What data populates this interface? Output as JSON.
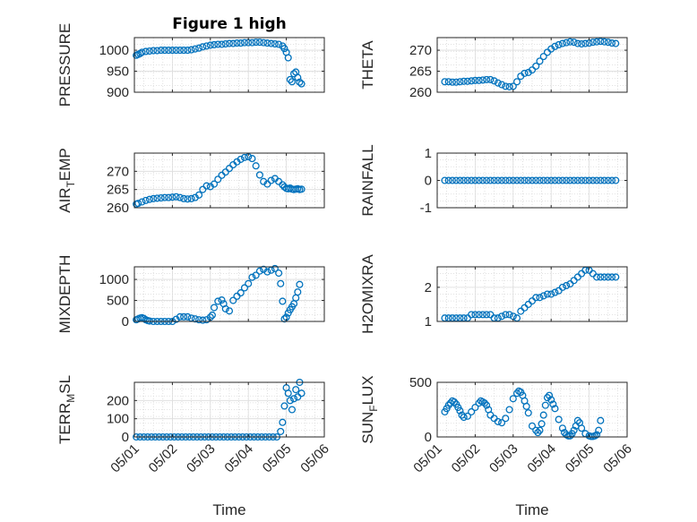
{
  "figure": {
    "title": "Figure 1 high",
    "marker_color": "#0072BD",
    "axes_color": "#262626",
    "grid": true
  },
  "chart_data": [
    {
      "type": "scatter",
      "id": "pressure",
      "title": "Figure 1 high",
      "xlabel": "",
      "ylabel": "PRESSURE",
      "xlim": [
        "05/01",
        "05/06"
      ],
      "ylim": [
        900,
        1030
      ],
      "yticks": [
        900,
        950,
        1000
      ],
      "xticks": [],
      "x": [
        0.05,
        0.1,
        0.15,
        0.2,
        0.3,
        0.4,
        0.5,
        0.6,
        0.7,
        0.8,
        0.9,
        1.0,
        1.1,
        1.2,
        1.3,
        1.4,
        1.5,
        1.6,
        1.7,
        1.8,
        1.9,
        2.0,
        2.1,
        2.2,
        2.3,
        2.4,
        2.5,
        2.6,
        2.7,
        2.8,
        2.9,
        3.0,
        3.1,
        3.2,
        3.3,
        3.4,
        3.5,
        3.6,
        3.7,
        3.8,
        3.9,
        3.95,
        4.0,
        4.05,
        4.1,
        4.15,
        4.2,
        4.25,
        4.3,
        4.35,
        4.4
      ],
      "y": [
        988,
        990,
        992,
        995,
        997,
        998,
        999,
        999,
        1000,
        1000,
        1000,
        1000,
        1000,
        1000,
        1000,
        1000,
        1001,
        1003,
        1005,
        1008,
        1010,
        1012,
        1013,
        1014,
        1014,
        1015,
        1016,
        1016,
        1017,
        1017,
        1018,
        1018,
        1018,
        1019,
        1019,
        1018,
        1017,
        1016,
        1015,
        1014,
        1010,
        1004,
        995,
        982,
        930,
        925,
        944,
        948,
        935,
        924,
        920
      ]
    },
    {
      "type": "scatter",
      "id": "theta",
      "xlabel": "",
      "ylabel": "THETA",
      "xlim": [
        "05/01",
        "05/06"
      ],
      "ylim": [
        260,
        273
      ],
      "yticks": [
        260,
        265,
        270
      ],
      "xticks": [],
      "x": [
        0.2,
        0.3,
        0.4,
        0.5,
        0.6,
        0.7,
        0.8,
        0.9,
        1.0,
        1.1,
        1.2,
        1.3,
        1.4,
        1.5,
        1.6,
        1.7,
        1.8,
        1.9,
        2.0,
        2.1,
        2.2,
        2.3,
        2.4,
        2.5,
        2.6,
        2.7,
        2.8,
        2.9,
        3.0,
        3.1,
        3.2,
        3.3,
        3.4,
        3.5,
        3.6,
        3.7,
        3.8,
        3.9,
        4.0,
        4.1,
        4.2,
        4.3,
        4.4,
        4.5,
        4.6,
        4.7
      ],
      "y": [
        262.5,
        262.5,
        262.4,
        262.4,
        262.5,
        262.6,
        262.6,
        262.7,
        262.8,
        262.8,
        262.9,
        263.0,
        263.0,
        262.7,
        262.2,
        261.8,
        261.4,
        261.3,
        261.4,
        262.5,
        263.8,
        264.5,
        264.7,
        265.3,
        266.2,
        267.4,
        268.5,
        269.5,
        270.3,
        270.9,
        271.3,
        271.6,
        271.8,
        272.0,
        271.9,
        271.6,
        271.5,
        271.6,
        271.7,
        271.9,
        272.0,
        272.1,
        272.0,
        271.9,
        271.7,
        271.6
      ]
    },
    {
      "type": "scatter",
      "id": "air_temp",
      "xlabel": "",
      "ylabel": "AIR_TEMP",
      "xlim": [
        "05/01",
        "05/06"
      ],
      "ylim": [
        260,
        275
      ],
      "yticks": [
        260,
        265,
        270
      ],
      "xticks": [],
      "x": [
        0.05,
        0.1,
        0.2,
        0.3,
        0.4,
        0.5,
        0.6,
        0.7,
        0.8,
        0.9,
        1.0,
        1.1,
        1.2,
        1.3,
        1.4,
        1.5,
        1.6,
        1.7,
        1.8,
        1.9,
        2.0,
        2.1,
        2.2,
        2.3,
        2.4,
        2.5,
        2.6,
        2.7,
        2.8,
        2.9,
        3.0,
        3.1,
        3.2,
        3.3,
        3.4,
        3.5,
        3.6,
        3.7,
        3.8,
        3.9,
        3.95,
        4.0,
        4.05,
        4.1,
        4.15,
        4.2,
        4.25,
        4.3,
        4.35,
        4.4
      ],
      "y": [
        261.0,
        261.2,
        261.6,
        262.0,
        262.3,
        262.5,
        262.6,
        262.7,
        262.8,
        262.8,
        262.9,
        263.0,
        262.8,
        262.5,
        262.4,
        262.5,
        262.8,
        263.5,
        265.0,
        266.0,
        265.8,
        266.5,
        267.8,
        268.9,
        269.8,
        270.8,
        271.8,
        272.6,
        273.3,
        273.8,
        274.0,
        273.5,
        271.5,
        269.0,
        267.2,
        266.5,
        267.5,
        268.0,
        267.2,
        266.3,
        265.7,
        265.3,
        265.2,
        265.4,
        265.1,
        265.0,
        265.1,
        265.2,
        265.0,
        265.1
      ]
    },
    {
      "type": "scatter",
      "id": "rainfall",
      "xlabel": "",
      "ylabel": "RAINFALL",
      "xlim": [
        "05/01",
        "05/06"
      ],
      "ylim": [
        -1,
        1
      ],
      "yticks": [
        -1,
        0,
        1
      ],
      "xticks": [],
      "x": [
        0.2,
        0.3,
        0.4,
        0.5,
        0.6,
        0.7,
        0.8,
        0.9,
        1.0,
        1.1,
        1.2,
        1.3,
        1.4,
        1.5,
        1.6,
        1.7,
        1.8,
        1.9,
        2.0,
        2.1,
        2.2,
        2.3,
        2.4,
        2.5,
        2.6,
        2.7,
        2.8,
        2.9,
        3.0,
        3.1,
        3.2,
        3.3,
        3.4,
        3.5,
        3.6,
        3.7,
        3.8,
        3.9,
        4.0,
        4.1,
        4.2,
        4.3,
        4.4,
        4.5,
        4.6,
        4.7
      ],
      "y": [
        0,
        0,
        0,
        0,
        0,
        0,
        0,
        0,
        0,
        0,
        0,
        0,
        0,
        0,
        0,
        0,
        0,
        0,
        0,
        0,
        0,
        0,
        0,
        0,
        0,
        0,
        0,
        0,
        0,
        0,
        0,
        0,
        0,
        0,
        0,
        0,
        0,
        0,
        0,
        0,
        0,
        0,
        0,
        0,
        0,
        0
      ]
    },
    {
      "type": "scatter",
      "id": "mixdepth",
      "xlabel": "",
      "ylabel": "MIXDEPTH",
      "xlim": [
        "05/01",
        "05/06"
      ],
      "ylim": [
        0,
        1300
      ],
      "yticks": [
        0,
        500,
        1000
      ],
      "xticks": [],
      "x": [
        0.05,
        0.1,
        0.15,
        0.2,
        0.25,
        0.3,
        0.35,
        0.4,
        0.5,
        0.6,
        0.7,
        0.8,
        0.9,
        1.0,
        1.1,
        1.2,
        1.3,
        1.4,
        1.5,
        1.6,
        1.7,
        1.8,
        1.9,
        2.0,
        2.05,
        2.1,
        2.2,
        2.3,
        2.35,
        2.4,
        2.5,
        2.6,
        2.7,
        2.8,
        2.9,
        3.0,
        3.1,
        3.2,
        3.3,
        3.4,
        3.5,
        3.6,
        3.7,
        3.8,
        3.85,
        3.9,
        3.95,
        4.0,
        4.05,
        4.1,
        4.15,
        4.2,
        4.25,
        4.3,
        4.35
      ],
      "y": [
        40,
        60,
        80,
        90,
        70,
        40,
        20,
        10,
        0,
        0,
        0,
        0,
        0,
        0,
        50,
        110,
        110,
        110,
        80,
        60,
        40,
        30,
        40,
        100,
        150,
        330,
        480,
        510,
        420,
        300,
        250,
        500,
        600,
        680,
        800,
        900,
        1050,
        1100,
        1200,
        1240,
        1180,
        1220,
        1260,
        1150,
        900,
        480,
        60,
        100,
        200,
        280,
        350,
        420,
        560,
        700,
        880
      ]
    },
    {
      "type": "scatter",
      "id": "h2omixra",
      "xlabel": "",
      "ylabel": "H2OMIXRA",
      "xlim": [
        "05/01",
        "05/06"
      ],
      "ylim": [
        1,
        2.6
      ],
      "yticks": [
        1,
        2
      ],
      "xticks": [],
      "x": [
        0.2,
        0.3,
        0.4,
        0.5,
        0.6,
        0.7,
        0.8,
        0.9,
        1.0,
        1.1,
        1.2,
        1.3,
        1.4,
        1.5,
        1.6,
        1.7,
        1.8,
        1.9,
        2.0,
        2.1,
        2.2,
        2.3,
        2.4,
        2.5,
        2.6,
        2.7,
        2.8,
        2.9,
        3.0,
        3.1,
        3.2,
        3.3,
        3.4,
        3.5,
        3.6,
        3.7,
        3.8,
        3.9,
        4.0,
        4.1,
        4.2,
        4.3,
        4.4,
        4.5,
        4.6,
        4.7
      ],
      "y": [
        1.1,
        1.1,
        1.1,
        1.1,
        1.1,
        1.1,
        1.1,
        1.2,
        1.2,
        1.2,
        1.2,
        1.2,
        1.2,
        1.1,
        1.1,
        1.15,
        1.2,
        1.2,
        1.15,
        1.1,
        1.3,
        1.4,
        1.5,
        1.6,
        1.7,
        1.7,
        1.75,
        1.8,
        1.8,
        1.85,
        1.9,
        2.0,
        2.05,
        2.1,
        2.2,
        2.3,
        2.4,
        2.5,
        2.5,
        2.4,
        2.3,
        2.3,
        2.3,
        2.3,
        2.3,
        2.3
      ]
    },
    {
      "type": "scatter",
      "id": "terr_msl",
      "xlabel": "Time",
      "ylabel": "TERR_MSL",
      "xlim": [
        "05/01",
        "05/06"
      ],
      "ylim": [
        0,
        300
      ],
      "yticks": [
        0,
        100,
        200
      ],
      "xticks": [
        "05/01",
        "05/02",
        "05/03",
        "05/04",
        "05/05",
        "05/06"
      ],
      "x": [
        0.05,
        0.15,
        0.25,
        0.35,
        0.45,
        0.55,
        0.65,
        0.75,
        0.85,
        0.95,
        1.05,
        1.15,
        1.25,
        1.35,
        1.45,
        1.55,
        1.65,
        1.75,
        1.85,
        1.95,
        2.05,
        2.15,
        2.25,
        2.35,
        2.45,
        2.55,
        2.65,
        2.75,
        2.85,
        2.95,
        3.05,
        3.15,
        3.25,
        3.35,
        3.45,
        3.55,
        3.65,
        3.75,
        3.85,
        3.9,
        3.95,
        4.0,
        4.05,
        4.1,
        4.15,
        4.2,
        4.25,
        4.3,
        4.35,
        4.4
      ],
      "y": [
        0,
        0,
        0,
        0,
        0,
        0,
        0,
        0,
        0,
        0,
        0,
        0,
        0,
        0,
        0,
        0,
        0,
        0,
        0,
        0,
        0,
        0,
        0,
        0,
        0,
        0,
        0,
        0,
        0,
        0,
        0,
        0,
        0,
        0,
        0,
        0,
        0,
        0,
        30,
        80,
        170,
        270,
        240,
        200,
        150,
        210,
        260,
        220,
        300,
        240
      ]
    },
    {
      "type": "scatter",
      "id": "sun_flux",
      "xlabel": "Time",
      "ylabel": "SUN_FLUX",
      "xlim": [
        "05/01",
        "05/06"
      ],
      "ylim": [
        0,
        500
      ],
      "yticks": [
        0,
        500
      ],
      "xticks": [
        "05/01",
        "05/02",
        "05/03",
        "05/04",
        "05/05",
        "05/06"
      ],
      "x": [
        0.2,
        0.25,
        0.3,
        0.35,
        0.4,
        0.45,
        0.5,
        0.55,
        0.6,
        0.65,
        0.7,
        0.8,
        0.9,
        1.0,
        1.1,
        1.15,
        1.2,
        1.25,
        1.3,
        1.35,
        1.4,
        1.5,
        1.6,
        1.7,
        1.8,
        1.9,
        2.0,
        2.1,
        2.15,
        2.2,
        2.25,
        2.3,
        2.35,
        2.4,
        2.5,
        2.6,
        2.65,
        2.7,
        2.75,
        2.8,
        2.85,
        2.9,
        2.95,
        3.0,
        3.05,
        3.1,
        3.2,
        3.3,
        3.35,
        3.4,
        3.45,
        3.5,
        3.55,
        3.6,
        3.65,
        3.7,
        3.75,
        3.8,
        3.9,
        4.0,
        4.05,
        4.1,
        4.15,
        4.2,
        4.25,
        4.3
      ],
      "y": [
        230,
        260,
        290,
        310,
        330,
        320,
        300,
        270,
        240,
        200,
        180,
        190,
        230,
        270,
        310,
        330,
        320,
        310,
        290,
        250,
        200,
        170,
        140,
        130,
        170,
        250,
        350,
        400,
        420,
        410,
        380,
        330,
        280,
        220,
        100,
        60,
        40,
        60,
        120,
        200,
        290,
        360,
        380,
        340,
        300,
        260,
        160,
        80,
        40,
        20,
        10,
        10,
        30,
        60,
        100,
        150,
        130,
        80,
        30,
        10,
        5,
        5,
        10,
        20,
        60,
        150
      ]
    }
  ]
}
